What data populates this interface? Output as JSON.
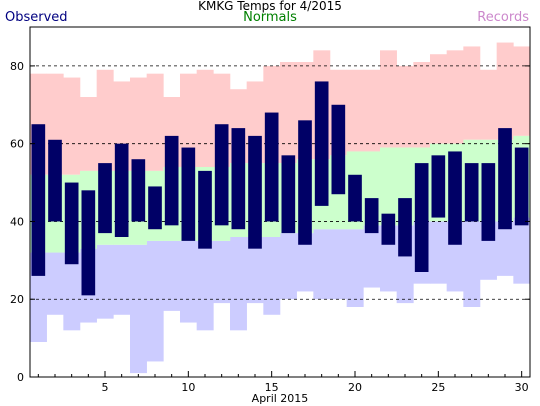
{
  "chart_data": {
    "type": "bar",
    "title": "KMKG Temps for 4/2015",
    "legend": {
      "observed": "Observed",
      "normals": "Normals",
      "records": "Records"
    },
    "colors": {
      "observed": "#000066",
      "normals": "#ccffcc",
      "record_high": "#ffcccc",
      "record_low": "#ccccff",
      "observed_label": "#000080",
      "normals_label": "#008000",
      "records_label": "#cc88cc"
    },
    "xlabel": "April 2015",
    "x_ticks": [
      5,
      10,
      15,
      20,
      25,
      30
    ],
    "y_ticks": [
      0,
      20,
      40,
      60,
      80
    ],
    "ylim": [
      0,
      90
    ],
    "xlim": [
      0.5,
      30.5
    ],
    "grid_lines": [
      20,
      40,
      60,
      80
    ],
    "days": [
      1,
      2,
      3,
      4,
      5,
      6,
      7,
      8,
      9,
      10,
      11,
      12,
      13,
      14,
      15,
      16,
      17,
      18,
      19,
      20,
      21,
      22,
      23,
      24,
      25,
      26,
      27,
      28,
      29,
      30
    ],
    "observed_high": [
      65,
      61,
      50,
      48,
      55,
      60,
      56,
      49,
      62,
      59,
      53,
      65,
      64,
      62,
      68,
      57,
      66,
      76,
      70,
      52,
      46,
      42,
      46,
      55,
      57,
      58,
      55,
      55,
      64,
      59
    ],
    "observed_low": [
      26,
      40,
      29,
      21,
      37,
      36,
      40,
      38,
      39,
      35,
      33,
      39,
      38,
      33,
      40,
      37,
      34,
      44,
      47,
      40,
      37,
      34,
      31,
      27,
      41,
      34,
      40,
      35,
      38,
      39
    ],
    "normal_high": [
      52,
      52,
      52,
      53,
      53,
      53,
      53,
      53,
      54,
      54,
      54,
      54,
      55,
      55,
      55,
      55,
      56,
      56,
      57,
      58,
      58,
      59,
      59,
      59,
      60,
      60,
      61,
      61,
      61,
      62
    ],
    "normal_low": [
      32,
      32,
      32,
      33,
      34,
      34,
      34,
      35,
      35,
      35,
      35,
      35,
      36,
      36,
      36,
      37,
      37,
      38,
      38,
      38,
      39,
      39,
      39,
      40,
      40,
      40,
      40,
      40,
      40,
      41
    ],
    "record_high": [
      78,
      78,
      77,
      72,
      79,
      76,
      77,
      78,
      72,
      78,
      79,
      78,
      74,
      76,
      80,
      81,
      81,
      84,
      79,
      79,
      79,
      84,
      80,
      81,
      83,
      84,
      85,
      79,
      86,
      85
    ],
    "record_low": [
      9,
      16,
      12,
      14,
      15,
      16,
      1,
      4,
      17,
      14,
      12,
      19,
      12,
      19,
      16,
      20,
      22,
      20,
      20,
      18,
      23,
      22,
      19,
      24,
      24,
      22,
      18,
      25,
      26,
      24
    ]
  }
}
